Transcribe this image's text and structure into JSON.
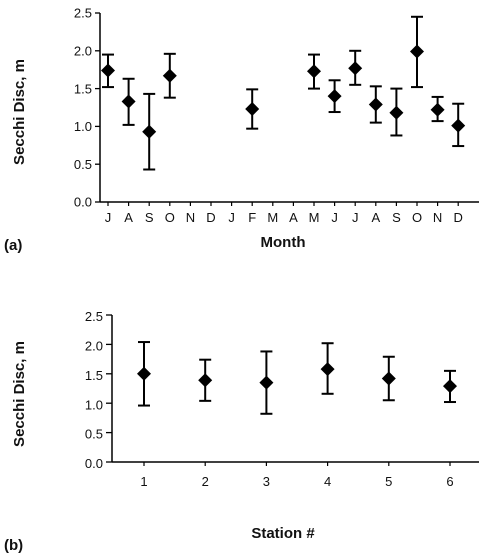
{
  "chart_data": [
    {
      "panel_label": "(a)",
      "type": "scatter",
      "xlabel": "Month",
      "ylabel": "Secchi Disc, m",
      "categories": [
        "J",
        "A",
        "S",
        "O",
        "N",
        "D",
        "J",
        "F",
        "M",
        "A",
        "M",
        "J",
        "J",
        "A",
        "S",
        "O",
        "N",
        "D"
      ],
      "ylim": [
        0.0,
        2.5
      ],
      "yticks": [
        "0.0",
        "0.5",
        "1.0",
        "1.5",
        "2.0",
        "2.5"
      ],
      "series": [
        {
          "values": [
            1.74,
            1.33,
            0.93,
            1.67,
            null,
            null,
            null,
            1.23,
            null,
            null,
            1.73,
            1.4,
            1.77,
            1.29,
            1.18,
            1.99,
            1.22,
            1.01
          ],
          "err_low": [
            1.52,
            1.02,
            0.43,
            1.38,
            null,
            null,
            null,
            0.97,
            null,
            null,
            1.5,
            1.19,
            1.55,
            1.05,
            0.88,
            1.52,
            1.07,
            0.74
          ],
          "err_high": [
            1.95,
            1.63,
            1.43,
            1.96,
            null,
            null,
            null,
            1.49,
            null,
            null,
            1.95,
            1.61,
            2.0,
            1.53,
            1.5,
            2.45,
            1.39,
            1.3
          ]
        }
      ],
      "grid": false
    },
    {
      "panel_label": "(b)",
      "type": "scatter",
      "xlabel": "Station #",
      "ylabel": "Secchi Disc, m",
      "categories": [
        "1",
        "2",
        "3",
        "4",
        "5",
        "6"
      ],
      "ylim": [
        0.0,
        2.5
      ],
      "yticks": [
        "0.0",
        "0.5",
        "1.0",
        "1.5",
        "2.0",
        "2.5"
      ],
      "series": [
        {
          "values": [
            1.5,
            1.39,
            1.35,
            1.58,
            1.42,
            1.29
          ],
          "err_low": [
            0.96,
            1.04,
            0.82,
            1.16,
            1.05,
            1.02
          ],
          "err_high": [
            2.04,
            1.74,
            1.88,
            2.02,
            1.79,
            1.55
          ]
        }
      ],
      "grid": false
    }
  ]
}
